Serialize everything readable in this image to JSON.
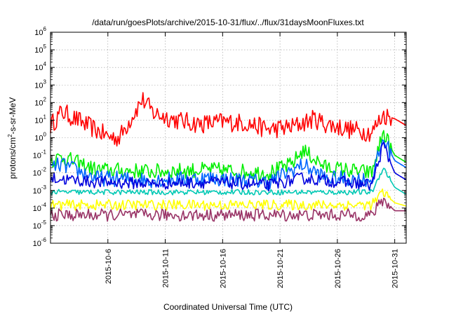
{
  "chart_data": {
    "type": "line",
    "title": "/data/run/goesPlots/archive/2015-10-31/flux/../flux/31daysMoonFluxes.txt",
    "xlabel": "Coordinated Universal Time (UTC)",
    "ylabel": {
      "prefix": "protons/cm",
      "sup": "2",
      "suffix": "-s-sr-MeV"
    },
    "y_scale": "log",
    "ylim": [
      1e-06,
      1000000.0
    ],
    "y_ticks": [
      {
        "base": "10",
        "exp": "-6"
      },
      {
        "base": "10",
        "exp": "-5"
      },
      {
        "base": "10",
        "exp": "-4"
      },
      {
        "base": "10",
        "exp": "-3"
      },
      {
        "base": "10",
        "exp": "-2"
      },
      {
        "base": "10",
        "exp": "-1"
      },
      {
        "base": "10",
        "exp": "0"
      },
      {
        "base": "10",
        "exp": "1"
      },
      {
        "base": "10",
        "exp": "2"
      },
      {
        "base": "10",
        "exp": "3"
      },
      {
        "base": "10",
        "exp": "4"
      },
      {
        "base": "10",
        "exp": "5"
      },
      {
        "base": "10",
        "exp": "6"
      }
    ],
    "xlim": [
      "2015-10-01",
      "2015-11-01"
    ],
    "x_ticks": [
      "2015-10-6",
      "2015-10-11",
      "2015-10-16",
      "2015-10-21",
      "2015-10-26",
      "2015-10-31"
    ],
    "grid": true,
    "series": [
      {
        "color": "#ff0000",
        "base": 7,
        "spread": 0.55,
        "points": [
          [
            "2015-10-01",
            5
          ],
          [
            "2015-10-02",
            30
          ],
          [
            "2015-10-04",
            6
          ],
          [
            "2015-10-06",
            1.2
          ],
          [
            "2015-10-07",
            1.0
          ],
          [
            "2015-10-09",
            150
          ],
          [
            "2015-10-10",
            25
          ],
          [
            "2015-10-12",
            10
          ],
          [
            "2015-10-14",
            6
          ],
          [
            "2015-10-16",
            8
          ],
          [
            "2015-10-18",
            7
          ],
          [
            "2015-10-20",
            3
          ],
          [
            "2015-10-22",
            4
          ],
          [
            "2015-10-24",
            12
          ],
          [
            "2015-10-25",
            6
          ],
          [
            "2015-10-27",
            3
          ],
          [
            "2015-10-29",
            2
          ],
          [
            "2015-10-30",
            20
          ],
          [
            "2015-10-31",
            12
          ],
          [
            "2015-11-01",
            5
          ]
        ]
      },
      {
        "color": "#00ee00",
        "base": 0.015,
        "spread": 0.45,
        "points": [
          [
            "2015-10-01",
            0.05
          ],
          [
            "2015-10-02",
            0.08
          ],
          [
            "2015-10-05",
            0.015
          ],
          [
            "2015-10-10",
            0.012
          ],
          [
            "2015-10-15",
            0.015
          ],
          [
            "2015-10-20",
            0.01
          ],
          [
            "2015-10-22",
            0.03
          ],
          [
            "2015-10-23",
            0.2
          ],
          [
            "2015-10-25",
            0.02
          ],
          [
            "2015-10-29",
            0.01
          ],
          [
            "2015-10-30",
            2
          ],
          [
            "2015-10-31",
            0.1
          ],
          [
            "2015-11-01",
            0.04
          ]
        ]
      },
      {
        "color": "#0066ff",
        "base": 0.005,
        "spread": 0.45,
        "points": [
          [
            "2015-10-01",
            0.02
          ],
          [
            "2015-10-02",
            0.03
          ],
          [
            "2015-10-05",
            0.005
          ],
          [
            "2015-10-10",
            0.004
          ],
          [
            "2015-10-15",
            0.005
          ],
          [
            "2015-10-20",
            0.003
          ],
          [
            "2015-10-23",
            0.03
          ],
          [
            "2015-10-25",
            0.005
          ],
          [
            "2015-10-29",
            0.004
          ],
          [
            "2015-10-30",
            0.9
          ],
          [
            "2015-10-31",
            0.05
          ],
          [
            "2015-11-01",
            0.02
          ]
        ]
      },
      {
        "color": "#0000dd",
        "base": 0.0025,
        "spread": 0.35,
        "points": [
          [
            "2015-10-01",
            0.005
          ],
          [
            "2015-10-05",
            0.003
          ],
          [
            "2015-10-10",
            0.0025
          ],
          [
            "2015-10-15",
            0.003
          ],
          [
            "2015-10-20",
            0.002
          ],
          [
            "2015-10-23",
            0.005
          ],
          [
            "2015-10-29",
            0.002
          ],
          [
            "2015-10-30",
            0.4
          ],
          [
            "2015-10-31",
            0.01
          ],
          [
            "2015-11-01",
            0.004
          ]
        ]
      },
      {
        "color": "#00c8b4",
        "base": 0.0008,
        "spread": 0.15,
        "points": [
          [
            "2015-10-01",
            0.0008
          ],
          [
            "2015-10-10",
            0.0008
          ],
          [
            "2015-10-20",
            0.0008
          ],
          [
            "2015-10-29",
            0.0008
          ],
          [
            "2015-10-30",
            0.02
          ],
          [
            "2015-10-31",
            0.0015
          ],
          [
            "2015-11-01",
            0.0006
          ]
        ]
      },
      {
        "color": "#ffff00",
        "base": 0.00015,
        "spread": 0.3,
        "points": [
          [
            "2015-10-01",
            0.00015
          ],
          [
            "2015-10-10",
            0.00015
          ],
          [
            "2015-10-20",
            0.00015
          ],
          [
            "2015-10-29",
            0.00015
          ],
          [
            "2015-10-30",
            0.0008
          ],
          [
            "2015-10-31",
            0.0002
          ],
          [
            "2015-11-01",
            0.00013
          ]
        ]
      },
      {
        "color": "#993366",
        "base": 4e-05,
        "spread": 0.35,
        "points": [
          [
            "2015-10-01",
            4e-05
          ],
          [
            "2015-10-10",
            4e-05
          ],
          [
            "2015-10-20",
            4e-05
          ],
          [
            "2015-10-29",
            4e-05
          ],
          [
            "2015-10-30",
            0.0003
          ],
          [
            "2015-10-31",
            7e-05
          ],
          [
            "2015-11-01",
            7e-05
          ]
        ]
      }
    ]
  }
}
